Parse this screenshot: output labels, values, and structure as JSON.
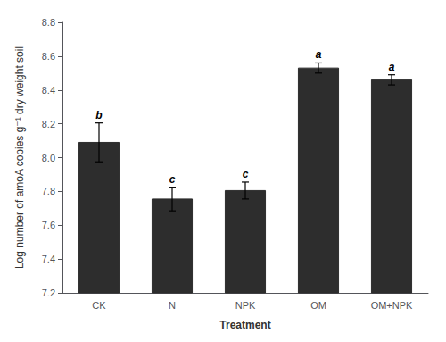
{
  "chart_data": {
    "type": "bar",
    "categories": [
      "CK",
      "N",
      "NPK",
      "OM",
      "OM+NPK"
    ],
    "values": [
      8.09,
      7.755,
      7.805,
      8.53,
      8.46
    ],
    "errors": [
      0.115,
      0.07,
      0.05,
      0.03,
      0.03
    ],
    "annotations": [
      "b",
      "c",
      "c",
      "a",
      "a"
    ],
    "color": "#2d2d2d",
    "xlabel": "Treatment",
    "ylabel": "Log number of amoA copies g⁻¹ dry weight soil",
    "ylim": [
      7.2,
      8.8
    ],
    "yticks": [
      7.2,
      7.4,
      7.6,
      7.8,
      {
        "value": 8.0,
        "label": "8.0"
      },
      8.2,
      8.4,
      8.6,
      8.8
    ],
    "grid": false
  }
}
